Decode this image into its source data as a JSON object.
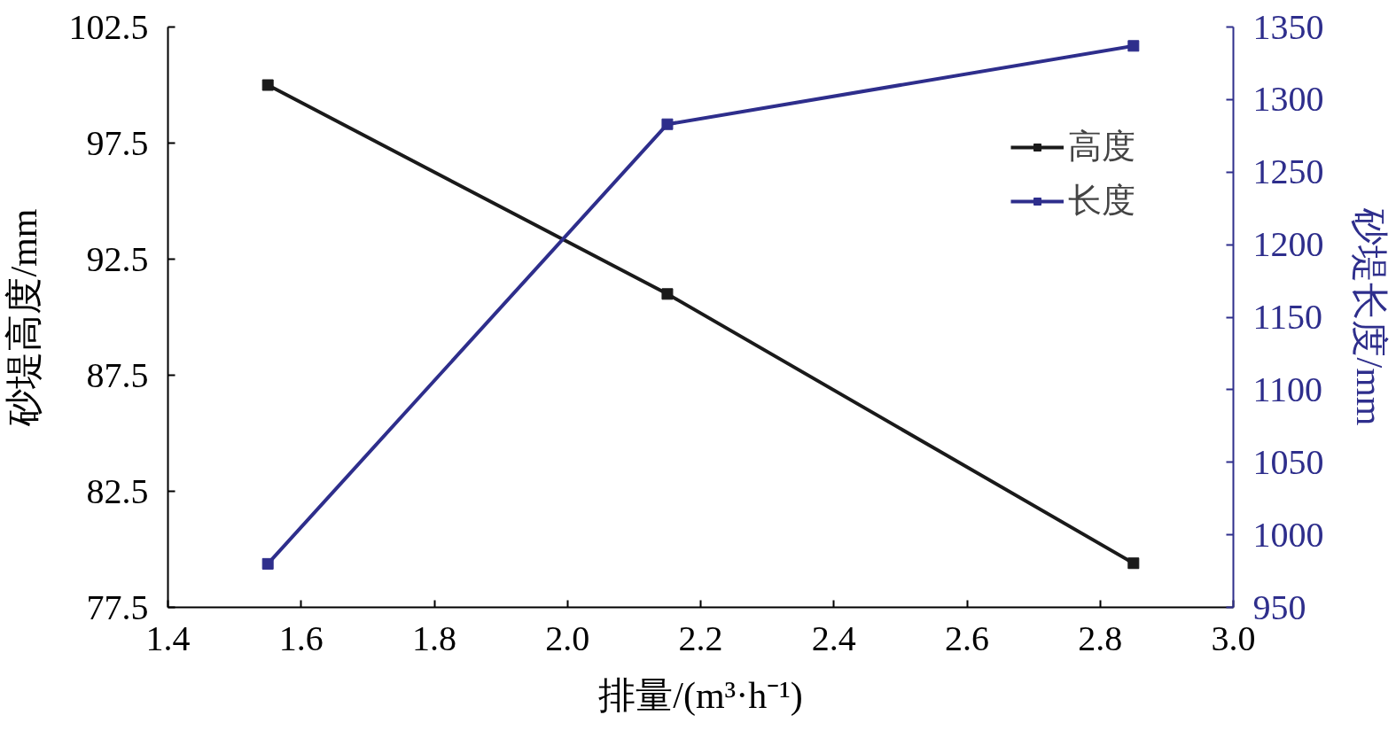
{
  "chart_data": {
    "type": "line",
    "xlabel": "排量/(m³·h⁻¹)",
    "ylabel": "砂堤高度/mm",
    "y2label": "砂堤长度/mm",
    "x": [
      1.55,
      2.15,
      2.85
    ],
    "series": [
      {
        "name": "高度",
        "color": "#1a1a1a",
        "values": [
          100.0,
          91.0,
          79.4
        ]
      },
      {
        "name": "长度",
        "color": "#2e2e8c",
        "values": [
          980,
          1283,
          1337
        ],
        "axis": "y2"
      }
    ],
    "xlim": [
      1.4,
      3.0
    ],
    "xticks": [
      1.4,
      1.6,
      1.8,
      {
        "value": 2.0,
        "label": "2.0"
      },
      2.2,
      2.4,
      2.6,
      2.8,
      {
        "value": 3.0,
        "label": "3.0"
      }
    ],
    "ylim": [
      77.5,
      102.5
    ],
    "yticks": [
      77.5,
      82.5,
      87.5,
      92.5,
      97.5,
      102.5
    ],
    "y2lim": [
      950,
      1350
    ],
    "y2ticks": [
      950,
      1000,
      1050,
      1100,
      1150,
      1200,
      1250,
      1300,
      1350
    ],
    "marker": "square",
    "grid": false,
    "legend": "top right",
    "line_style": "solid"
  }
}
